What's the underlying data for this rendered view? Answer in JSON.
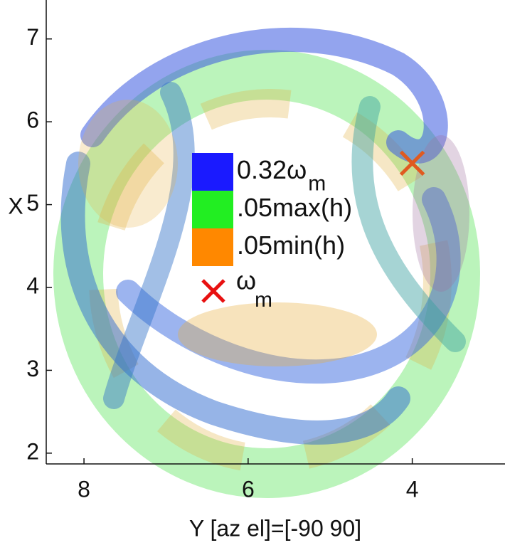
{
  "chart_data": {
    "type": "scatter",
    "xlabel": "Y  [az el]=[-90 90]",
    "ylabel": "X",
    "xlim": [
      8.46,
      2.87
    ],
    "ylim": [
      1.87,
      7.47
    ],
    "xticks": [
      8,
      6,
      4
    ],
    "yticks": [
      2,
      3,
      4,
      5,
      6,
      7
    ],
    "legend": [
      {
        "name": "0.32ω",
        "name_subscript": "m",
        "color": "#1a1aff"
      },
      {
        "name": ".05max(h)",
        "color": "#22ee22"
      },
      {
        "name": ".05min(h)",
        "color": "#ff8800"
      }
    ],
    "series": [
      {
        "name": "ω",
        "name_subscript": "m",
        "color": "#e05a20",
        "legend_color": "#e81010",
        "x": [
          4.0
        ],
        "values": [
          5.5
        ]
      }
    ]
  }
}
